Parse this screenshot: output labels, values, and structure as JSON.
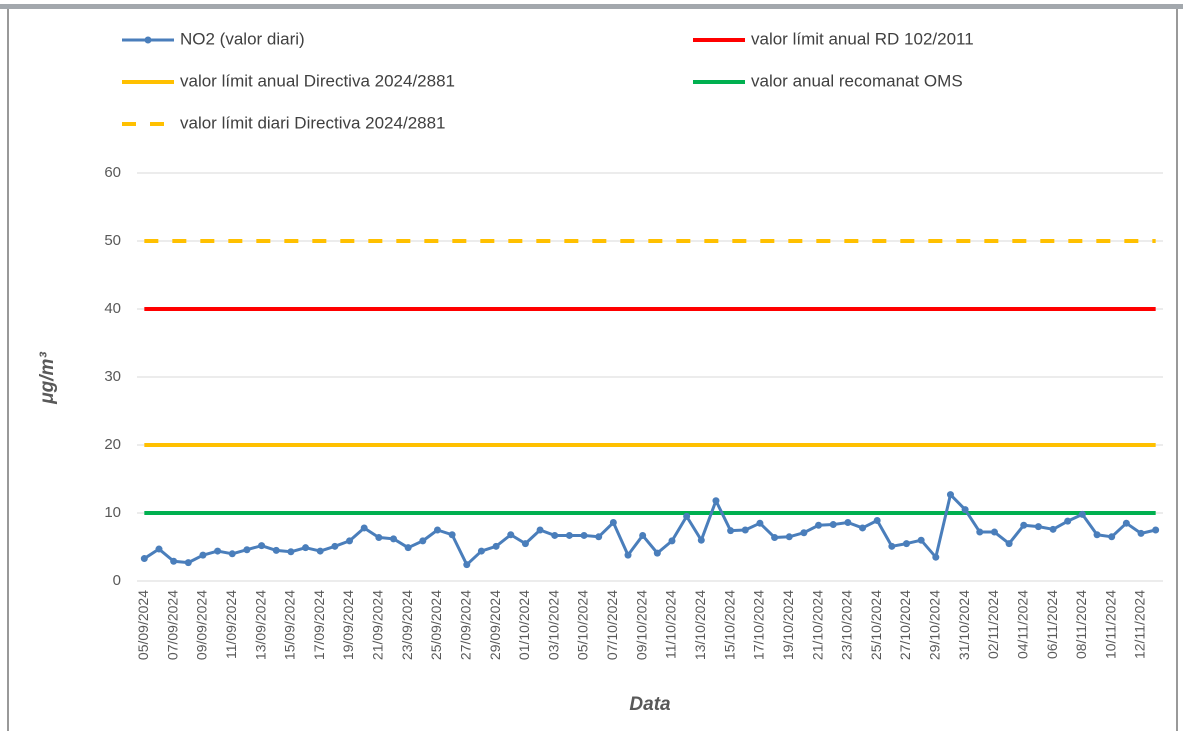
{
  "chart_data": {
    "type": "line",
    "x_label": "Data",
    "y_label": "μg/m³",
    "categories": [
      "05/09/2024",
      null,
      "07/09/2024",
      null,
      "09/09/2024",
      null,
      "11/09/2024",
      null,
      "13/09/2024",
      null,
      "15/09/2024",
      null,
      "17/09/2024",
      null,
      "19/09/2024",
      null,
      "21/09/2024",
      null,
      "23/09/2024",
      null,
      "25/09/2024",
      null,
      "27/09/2024",
      null,
      "29/09/2024",
      null,
      "01/10/2024",
      null,
      "03/10/2024",
      null,
      "05/10/2024",
      null,
      "07/10/2024",
      null,
      "09/10/2024",
      null,
      "11/10/2024",
      null,
      "13/10/2024",
      null,
      "15/10/2024",
      null,
      "17/10/2024",
      null,
      "19/10/2024",
      null,
      "21/10/2024",
      null,
      "23/10/2024",
      null,
      "25/10/2024",
      null,
      "27/10/2024",
      null,
      "29/10/2024",
      null,
      "31/10/2024",
      null,
      "02/11/2024",
      null,
      "04/11/2024",
      null,
      "06/11/2024",
      null,
      "08/11/2024",
      null,
      "10/11/2024",
      null,
      "12/11/2024",
      null
    ],
    "series": [
      {
        "name": "NO2 (valor diari)",
        "color": "#4a7ebb",
        "type": "line",
        "markers": true,
        "values": [
          3.3,
          4.7,
          2.9,
          2.7,
          3.8,
          4.4,
          4.0,
          4.6,
          5.2,
          4.5,
          4.3,
          4.9,
          4.4,
          5.1,
          5.9,
          7.8,
          6.4,
          6.2,
          4.9,
          5.9,
          7.5,
          6.8,
          2.4,
          4.4,
          5.1,
          6.8,
          5.5,
          7.5,
          6.7,
          6.7,
          6.7,
          6.5,
          8.6,
          3.8,
          6.7,
          4.1,
          5.9,
          9.5,
          6.0,
          11.8,
          7.4,
          7.5,
          8.5,
          6.4,
          6.5,
          7.1,
          8.2,
          8.3,
          8.6,
          7.8,
          8.9,
          5.1,
          5.5,
          6.0,
          3.5,
          12.7,
          10.5,
          7.2,
          7.2,
          5.5,
          8.2,
          8.0,
          7.6,
          8.8,
          9.8,
          6.8,
          6.5,
          8.5,
          7.0,
          7.5
        ]
      },
      {
        "name": "valor límit anual RD 102/2011",
        "color": "#ff0000",
        "type": "hline",
        "value": 40
      },
      {
        "name": "valor límit anual Directiva 2024/2881",
        "color": "#ffc000",
        "type": "hline",
        "value": 20
      },
      {
        "name": "valor anual recomanat OMS",
        "color": "#00b050",
        "type": "hline",
        "value": 10
      },
      {
        "name": "valor límit diari Directiva 2024/2881",
        "color": "#ffc000",
        "type": "hline",
        "value": 50,
        "dashed": true
      }
    ],
    "ylim": [
      0,
      60
    ],
    "yticks": [
      0,
      10,
      20,
      30,
      40,
      50,
      60
    ],
    "grid": true
  }
}
